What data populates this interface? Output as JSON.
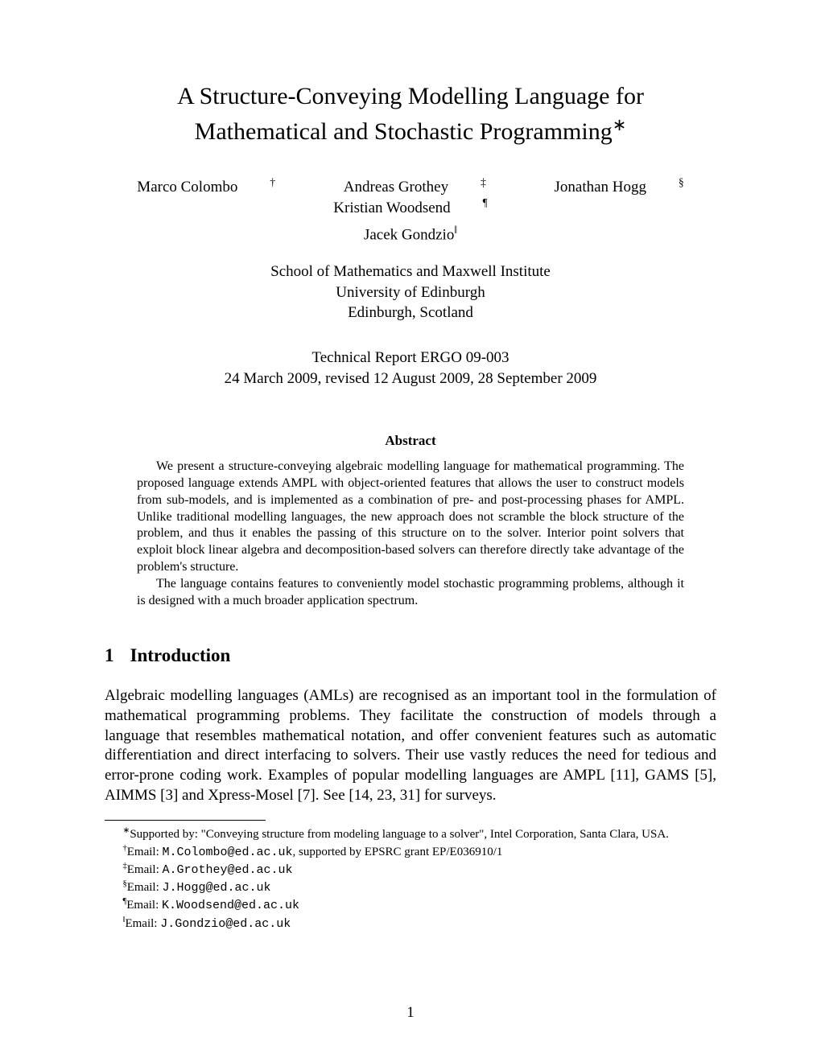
{
  "title_line1": "A Structure-Conveying Modelling Language for",
  "title_line2": "Mathematical and Stochastic Programming",
  "title_mark": "∗",
  "authors": {
    "a1": {
      "name": "Marco Colombo",
      "mark": "†"
    },
    "a2": {
      "name": "Andreas Grothey",
      "mark": "‡"
    },
    "a3": {
      "name": "Jonathan Hogg",
      "mark": "§"
    },
    "a4": {
      "name": "Kristian Woodsend",
      "mark": "¶"
    },
    "a5": {
      "name": "Jacek Gondzio",
      "mark": "‖"
    }
  },
  "affiliation": {
    "line1": "School of Mathematics and Maxwell Institute",
    "line2": "University of Edinburgh",
    "line3": "Edinburgh, Scotland"
  },
  "report": {
    "line1": "Technical Report ERGO 09-003",
    "line2": "24 March 2009, revised 12 August 2009, 28 September 2009"
  },
  "abstract": {
    "heading": "Abstract",
    "p1": "We present a structure-conveying algebraic modelling language for mathematical programming. The proposed language extends AMPL with object-oriented features that allows the user to construct models from sub-models, and is implemented as a combination of pre- and post-processing phases for AMPL. Unlike traditional modelling languages, the new approach does not scramble the block structure of the problem, and thus it enables the passing of this structure on to the solver. Interior point solvers that exploit block linear algebra and decomposition-based solvers can therefore directly take advantage of the problem's structure.",
    "p2": "The language contains features to conveniently model stochastic programming problems, although it is designed with a much broader application spectrum."
  },
  "section1": {
    "number": "1",
    "title": "Introduction",
    "body": "Algebraic modelling languages (AMLs) are recognised as an important tool in the formulation of mathematical programming problems. They facilitate the construction of models through a language that resembles mathematical notation, and offer convenient features such as automatic differentiation and direct interfacing to solvers. Their use vastly reduces the need for tedious and error-prone coding work. Examples of popular modelling languages are AMPL [11], GAMS [5], AIMMS [3] and Xpress-Mosel [7]. See [14, 23, 31] for surveys."
  },
  "footnotes": {
    "f1": {
      "mark": "∗",
      "prefix": "Supported by: \"Conveying structure from modeling language to a solver\", Intel Corporation, Santa Clara, USA."
    },
    "f2": {
      "mark": "†",
      "prefix": "Email: ",
      "mono": "M.Colombo@ed.ac.uk",
      "suffix": ", supported by EPSRC grant EP/E036910/1"
    },
    "f3": {
      "mark": "‡",
      "prefix": "Email: ",
      "mono": "A.Grothey@ed.ac.uk"
    },
    "f4": {
      "mark": "§",
      "prefix": "Email: ",
      "mono": "J.Hogg@ed.ac.uk"
    },
    "f5": {
      "mark": "¶",
      "prefix": "Email: ",
      "mono": "K.Woodsend@ed.ac.uk"
    },
    "f6": {
      "mark": "‖",
      "prefix": "Email: ",
      "mono": "J.Gondzio@ed.ac.uk"
    }
  },
  "page_number": "1"
}
